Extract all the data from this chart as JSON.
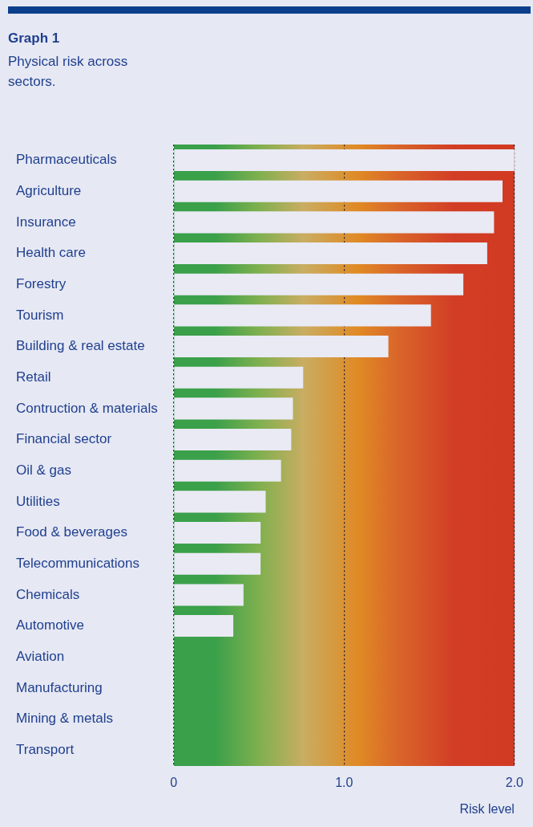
{
  "chart_data": {
    "type": "bar",
    "title": "Graph 1",
    "subtitle": "Physical risk across sectors.",
    "xlabel": "Risk level",
    "orientation": "horizontal",
    "categories": [
      "Pharmaceuticals",
      "Agriculture",
      "Insurance",
      "Health care",
      "Forestry",
      "Tourism",
      "Building & real estate",
      "Retail",
      "Contruction & materials",
      "Financial sector",
      "Oil & gas",
      "Utilities",
      "Food & beverages",
      "Telecommunications",
      "Chemicals",
      "Automotive",
      "Aviation",
      "Manufacturing",
      "Mining & metals",
      "Transport"
    ],
    "values": [
      2.0,
      1.93,
      1.88,
      1.84,
      1.7,
      1.51,
      1.26,
      0.76,
      0.7,
      0.69,
      0.63,
      0.54,
      0.51,
      0.51,
      0.41,
      0.35,
      0,
      0,
      0,
      0
    ],
    "color": "#e9eaf4",
    "xlim": [
      0,
      2
    ],
    "xticks": [
      0,
      {
        "value": 1,
        "label": "1.0"
      },
      {
        "value": 2,
        "label": "2.0"
      }
    ],
    "grid": "x"
  }
}
